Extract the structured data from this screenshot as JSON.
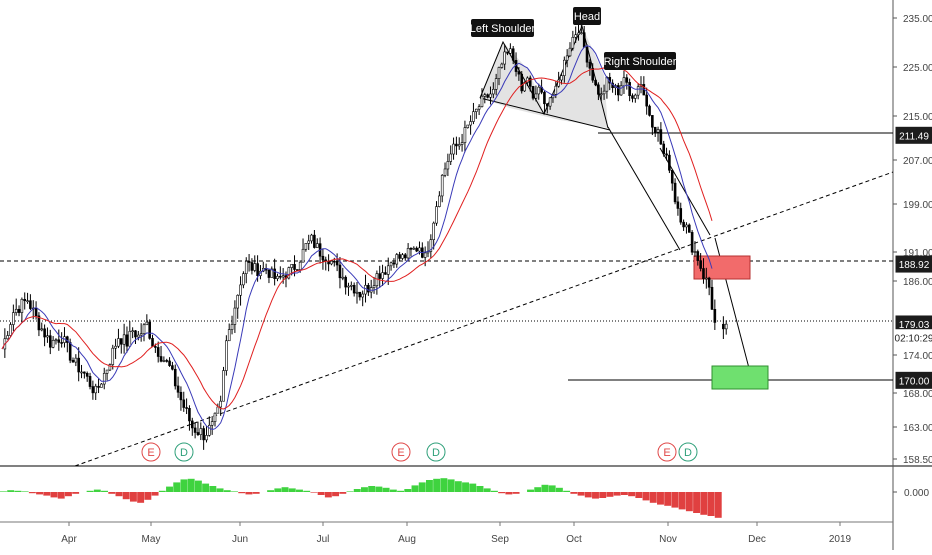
{
  "chart_data": {
    "type": "candlestick",
    "y_ticks": [
      "235.00",
      "225.00",
      "215.00",
      "207.00",
      "199.00",
      "191.00",
      "186.00",
      "174.00",
      "168.00",
      "163.00",
      "158.50"
    ],
    "y_tick_values": [
      235,
      225,
      215,
      207,
      199,
      191,
      186,
      174,
      168,
      163,
      158.5
    ],
    "x_ticks": [
      "Apr",
      "May",
      "Jun",
      "Jul",
      "Aug",
      "Sep",
      "Oct",
      "Nov",
      "Dec",
      "2019"
    ],
    "price_labels": [
      {
        "id": "level-211",
        "text": "211.49",
        "value": 211.49,
        "style": "dark"
      },
      {
        "id": "level-188",
        "text": "188.92",
        "value": 188.92,
        "style": "dark"
      },
      {
        "id": "last-price",
        "text": "179.03",
        "value": 179.03,
        "style": "dark"
      },
      {
        "id": "countdown",
        "text": "02:10:29",
        "value": 176.8,
        "style": "light"
      },
      {
        "id": "level-170",
        "text": "170.00",
        "value": 170.0,
        "style": "dark"
      }
    ],
    "annotations": {
      "left_shoulder": "Left Shoulder",
      "head": "Head",
      "right_shoulder": "Right Shoulder"
    },
    "event_markers": [
      {
        "letter": "E",
        "type": "earnings",
        "month": "May"
      },
      {
        "letter": "D",
        "type": "dividend",
        "month": "May"
      },
      {
        "letter": "E",
        "type": "earnings",
        "month": "Aug"
      },
      {
        "letter": "D",
        "type": "dividend",
        "month": "Aug"
      },
      {
        "letter": "E",
        "type": "earnings",
        "month": "Nov"
      },
      {
        "letter": "D",
        "type": "dividend",
        "month": "Nov"
      }
    ],
    "price_path": [
      [
        1,
        175
      ],
      [
        5,
        181
      ],
      [
        10,
        183
      ],
      [
        14,
        179
      ],
      [
        18,
        176
      ],
      [
        22,
        177
      ],
      [
        26,
        173
      ],
      [
        30,
        171
      ],
      [
        34,
        168
      ],
      [
        38,
        172
      ],
      [
        42,
        177
      ],
      [
        45,
        176
      ],
      [
        47,
        178
      ],
      [
        49,
        177
      ],
      [
        52,
        179
      ],
      [
        54,
        176
      ],
      [
        57,
        174
      ],
      [
        60,
        172
      ],
      [
        64,
        167
      ],
      [
        68,
        163
      ],
      [
        72,
        162
      ],
      [
        75,
        163
      ],
      [
        78,
        166
      ],
      [
        80,
        176
      ],
      [
        82,
        180
      ],
      [
        85,
        186
      ],
      [
        87,
        189
      ],
      [
        90,
        188
      ],
      [
        94,
        188
      ],
      [
        98,
        186
      ],
      [
        100,
        187
      ],
      [
        103,
        188
      ],
      [
        105,
        189
      ],
      [
        108,
        192
      ],
      [
        110,
        193
      ],
      [
        113,
        191
      ],
      [
        116,
        190
      ],
      [
        119,
        188
      ],
      [
        122,
        186
      ],
      [
        125,
        185
      ],
      [
        127,
        184
      ],
      [
        130,
        185
      ],
      [
        133,
        187
      ],
      [
        136,
        188
      ],
      [
        139,
        190
      ],
      [
        142,
        190
      ],
      [
        145,
        191
      ],
      [
        148,
        192
      ],
      [
        150,
        190
      ],
      [
        152,
        194
      ],
      [
        154,
        199
      ],
      [
        156,
        204
      ],
      [
        158,
        207
      ],
      [
        160,
        209
      ],
      [
        162,
        210
      ],
      [
        164,
        212
      ],
      [
        166,
        214
      ],
      [
        168,
        216
      ],
      [
        170,
        218
      ],
      [
        172,
        219
      ],
      [
        174,
        220
      ],
      [
        176,
        224
      ],
      [
        178,
        227
      ],
      [
        180,
        228
      ],
      [
        182,
        225
      ],
      [
        184,
        220
      ],
      [
        186,
        223
      ],
      [
        188,
        218
      ],
      [
        190,
        221
      ],
      [
        192,
        217
      ],
      [
        194,
        219
      ],
      [
        196,
        220
      ],
      [
        198,
        224
      ],
      [
        200,
        228
      ],
      [
        202,
        231
      ],
      [
        204,
        233
      ],
      [
        206,
        229
      ],
      [
        208,
        225
      ],
      [
        210,
        221
      ],
      [
        212,
        219
      ],
      [
        214,
        222
      ],
      [
        216,
        221
      ],
      [
        218,
        220
      ],
      [
        220,
        223
      ],
      [
        222,
        219
      ],
      [
        224,
        220
      ],
      [
        226,
        222
      ],
      [
        228,
        217
      ],
      [
        230,
        214
      ],
      [
        232,
        212
      ],
      [
        234,
        208
      ],
      [
        236,
        206
      ],
      [
        238,
        200
      ],
      [
        240,
        197
      ],
      [
        242,
        195
      ],
      [
        244,
        192
      ],
      [
        246,
        190
      ],
      [
        248,
        187
      ],
      [
        250,
        185
      ],
      [
        252,
        179
      ],
      [
        254,
        178
      ],
      [
        256,
        179
      ]
    ],
    "oscillator": {
      "zero_label": "0.000",
      "values": [
        0.1,
        0.3,
        0.2,
        0.1,
        -0.2,
        -0.4,
        -0.6,
        -0.9,
        -1.1,
        -0.7,
        -0.3,
        0.0,
        0.2,
        0.4,
        0.2,
        -0.3,
        -0.7,
        -1.2,
        -1.6,
        -1.8,
        -1.3,
        -0.6,
        0.2,
        0.9,
        1.6,
        2.1,
        2.2,
        1.9,
        1.4,
        1.0,
        0.6,
        0.3,
        0.1,
        -0.2,
        -0.4,
        -0.3,
        0.0,
        0.3,
        0.6,
        0.8,
        0.6,
        0.4,
        0.2,
        -0.1,
        -0.5,
        -0.9,
        -0.7,
        -0.3,
        0.1,
        0.5,
        0.8,
        1.0,
        0.9,
        0.7,
        0.4,
        0.2,
        0.5,
        1.1,
        1.6,
        2.0,
        2.2,
        2.3,
        2.1,
        1.8,
        1.6,
        1.4,
        1.0,
        0.6,
        0.2,
        -0.2,
        -0.4,
        -0.3,
        0.0,
        0.4,
        0.8,
        1.2,
        1.1,
        0.7,
        0.2,
        -0.3,
        -0.6,
        -0.9,
        -1.1,
        -1.0,
        -0.8,
        -0.6,
        -0.5,
        -0.7,
        -1.0,
        -1.4,
        -1.8,
        -2.1,
        -2.3,
        -2.6,
        -2.9,
        -3.2,
        -3.5,
        -3.8,
        -4.0,
        -4.3
      ]
    }
  }
}
